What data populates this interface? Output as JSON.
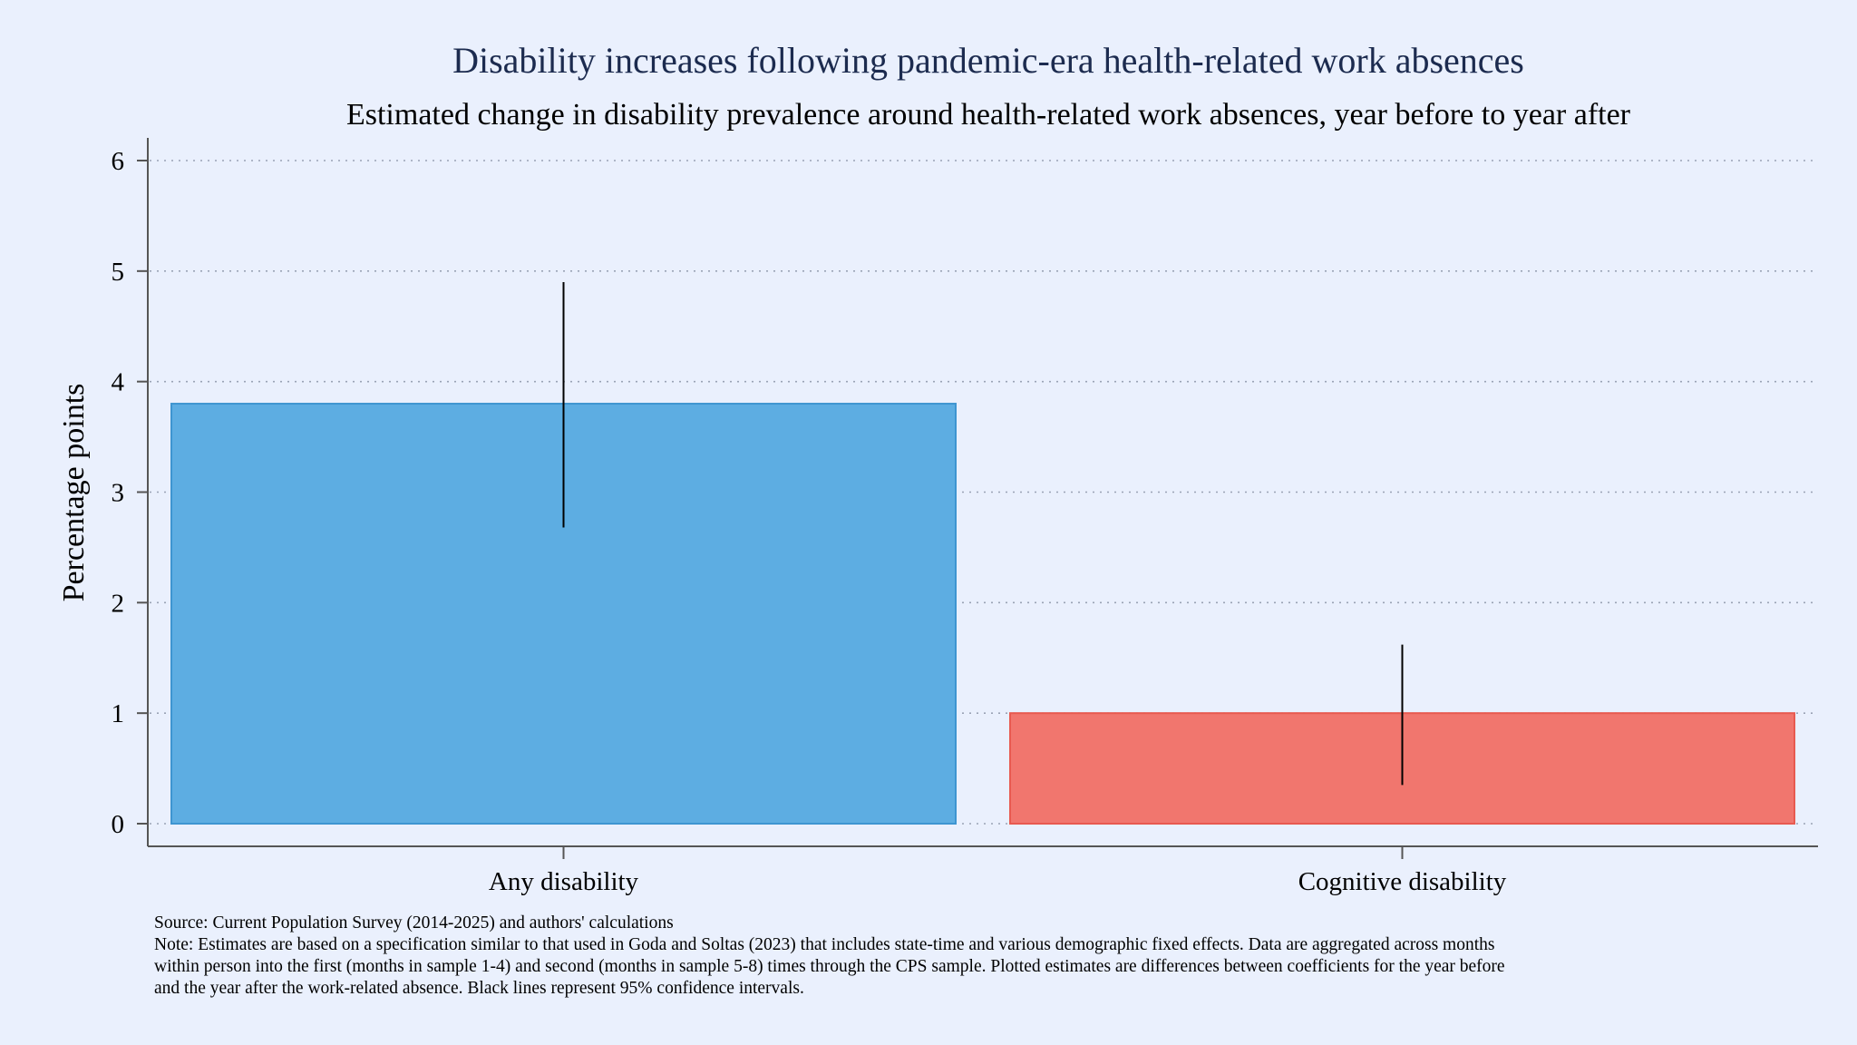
{
  "chart_data": {
    "type": "bar",
    "title": "Disability increases following pandemic-era health-related work absences",
    "subtitle": "Estimated change in disability prevalence around health-related work absences, year before to year after",
    "xlabel": "",
    "ylabel": "Percentage points",
    "ylim": [
      0,
      6.2
    ],
    "yticks": [
      0,
      1,
      2,
      3,
      4,
      5,
      6
    ],
    "grid": true,
    "categories": [
      "Any disability",
      "Cognitive disability"
    ],
    "values": [
      3.8,
      1.0
    ],
    "ci_low": [
      2.68,
      0.35
    ],
    "ci_high": [
      4.9,
      1.62
    ],
    "colors": [
      "#5dade2",
      "#f1766e"
    ],
    "edge_colors": [
      "#3e95d1",
      "#e85a50"
    ],
    "ci_color": "#000000",
    "title_color": "#1c2b4f",
    "background": "#eaf0fd"
  },
  "source_text": "Source: Current Population Survey (2014-2025) and authors' calculations",
  "note_lines": [
    "Note: Estimates are based on a specification similar to that used in Goda and Soltas (2023) that includes state-time and various demographic fixed effects. Data are aggregated across months",
    "within person into the first (months in sample 1-4) and second (months in sample 5-8) times through the CPS sample. Plotted estimates are differences between coefficients for the year before",
    "and the year after the work-related absence. Black lines represent 95% confidence intervals."
  ]
}
